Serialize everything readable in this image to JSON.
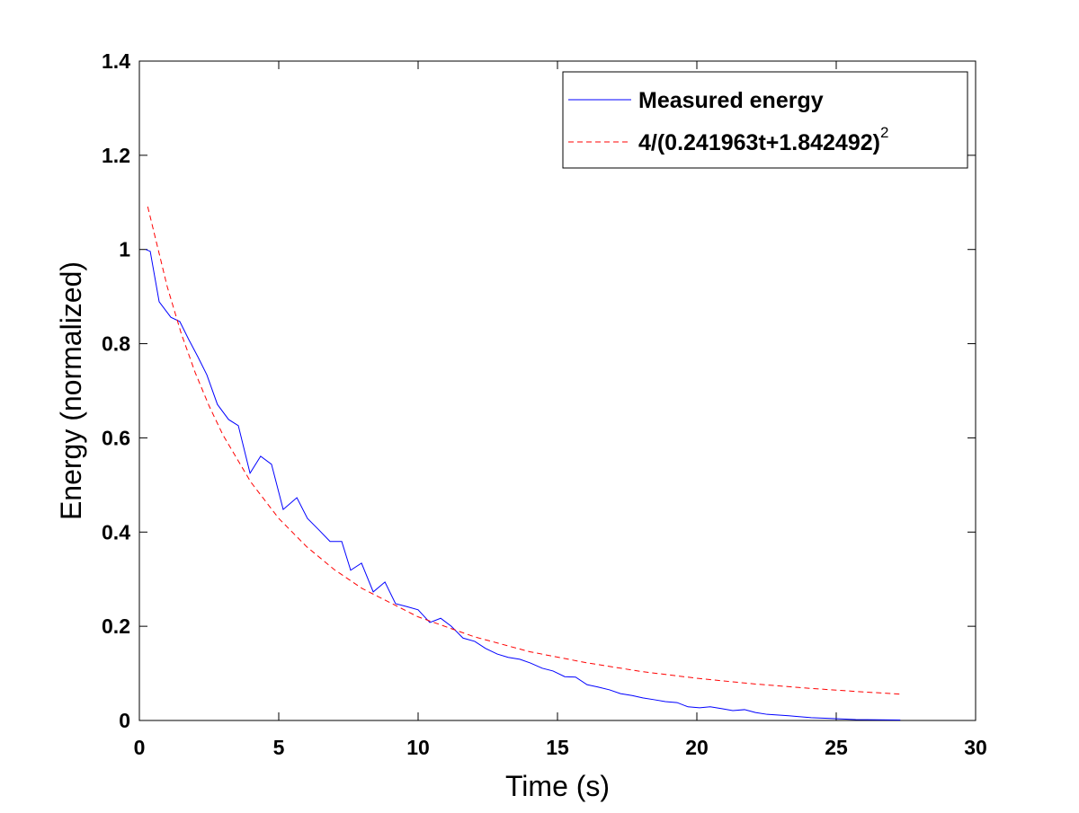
{
  "chart_data": {
    "type": "line",
    "xlabel": "Time (s)",
    "ylabel": "Energy (normalized)",
    "xlim": [
      0,
      30
    ],
    "xticks": [
      0,
      5,
      10,
      15,
      20,
      25,
      30
    ],
    "ylim": [
      0,
      1.4
    ],
    "yticks": [
      0,
      0.2,
      0.4,
      0.6,
      0.8,
      1,
      1.2,
      1.4
    ],
    "legend": "upper right",
    "series": [
      {
        "name": "Measured energy",
        "color": "#0000ff",
        "dash": "solid",
        "x": [
          0.23,
          0.39,
          0.71,
          1.13,
          1.45,
          1.77,
          2.1,
          2.42,
          2.8,
          3.2,
          3.55,
          3.97,
          4.35,
          4.74,
          5.16,
          5.65,
          6.03,
          6.45,
          6.84,
          7.26,
          7.58,
          7.97,
          8.39,
          8.81,
          9.19,
          9.58,
          10.0,
          10.42,
          10.81,
          11.19,
          11.61,
          12.03,
          12.42,
          12.84,
          13.23,
          13.65,
          14.03,
          14.45,
          14.84,
          15.26,
          15.65,
          16.06,
          16.45,
          16.87,
          17.26,
          17.68,
          18.06,
          18.48,
          18.87,
          19.29,
          19.68,
          20.1,
          20.48,
          20.9,
          21.29,
          21.71,
          22.1,
          22.52,
          23.3,
          24.1,
          24.9,
          25.7,
          27.3
        ],
        "values": [
          1.0,
          0.996,
          0.889,
          0.856,
          0.847,
          0.809,
          0.772,
          0.734,
          0.671,
          0.639,
          0.626,
          0.525,
          0.561,
          0.544,
          0.448,
          0.473,
          0.429,
          0.404,
          0.38,
          0.38,
          0.319,
          0.334,
          0.273,
          0.294,
          0.248,
          0.242,
          0.235,
          0.208,
          0.217,
          0.2,
          0.175,
          0.168,
          0.153,
          0.141,
          0.134,
          0.13,
          0.122,
          0.111,
          0.105,
          0.093,
          0.092,
          0.076,
          0.071,
          0.065,
          0.057,
          0.053,
          0.048,
          0.044,
          0.04,
          0.038,
          0.029,
          0.027,
          0.029,
          0.025,
          0.021,
          0.023,
          0.017,
          0.013,
          0.01,
          0.006,
          0.004,
          0.002,
          0.001
        ]
      },
      {
        "name": "4/(0.241963t+1.842492)",
        "name_exponent": "2",
        "color": "#ff0000",
        "dash": "dashed",
        "x": [
          0.3,
          1,
          1.5,
          2,
          2.5,
          3,
          4,
          5,
          6,
          7,
          8,
          10,
          12,
          14,
          16,
          18,
          20,
          22,
          24,
          26,
          27.3
        ],
        "values": [
          1.091,
          0.921,
          0.822,
          0.739,
          0.668,
          0.606,
          0.506,
          0.429,
          0.369,
          0.32,
          0.28,
          0.22,
          0.178,
          0.146,
          0.123,
          0.104,
          0.0896,
          0.0779,
          0.0684,
          0.0605,
          0.056
        ]
      }
    ]
  }
}
